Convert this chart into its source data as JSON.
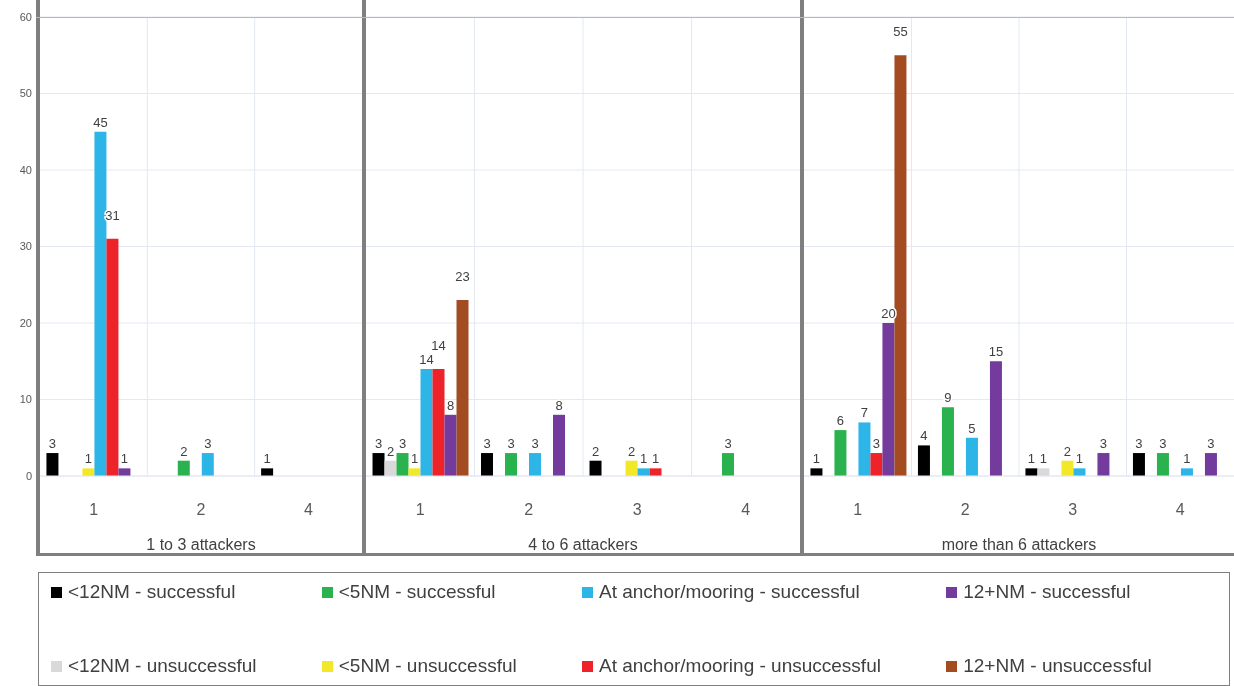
{
  "chart_data": [
    {
      "type": "bar",
      "xlabel": "1 to 3 attackers",
      "categories": [
        "1",
        "2",
        "4"
      ],
      "ylim": [
        0,
        60
      ],
      "yticks": [
        0,
        10,
        20,
        30,
        40,
        50,
        60
      ],
      "grid": true,
      "data_labels": true,
      "legend": "bottom",
      "series": [
        {
          "name": "<12NM - successful",
          "color": "#000000",
          "values": [
            3,
            null,
            1
          ]
        },
        {
          "name": "<12NM - unsuccessful",
          "color": "#d9d9d9",
          "values": [
            null,
            null,
            null
          ]
        },
        {
          "name": "<5NM - successful",
          "color": "#2ab24f",
          "values": [
            null,
            2,
            null
          ]
        },
        {
          "name": "<5NM - unsuccessful",
          "color": "#f2e827",
          "values": [
            1,
            null,
            null
          ]
        },
        {
          "name": "At anchor/mooring - successful",
          "color": "#2db5e8",
          "values": [
            45,
            3,
            null
          ]
        },
        {
          "name": "At anchor/mooring - unsuccessful",
          "color": "#ee2229",
          "values": [
            31,
            null,
            null
          ]
        },
        {
          "name": "12+NM - successful",
          "color": "#723b9c",
          "values": [
            1,
            null,
            null
          ]
        },
        {
          "name": "12+NM - unsuccessful",
          "color": "#a34b21",
          "values": [
            null,
            null,
            null
          ]
        }
      ]
    },
    {
      "type": "bar",
      "xlabel": "4 to 6 attackers",
      "categories": [
        "1",
        "2",
        "3",
        "4"
      ],
      "ylim": [
        0,
        60
      ],
      "yticks": [
        0,
        10,
        20,
        30,
        40,
        50,
        60
      ],
      "tick_labels": "x",
      "grid": true,
      "data_labels": true,
      "series": [
        {
          "color": "#000000",
          "values": [
            3,
            3,
            2,
            null
          ]
        },
        {
          "color": "#d9d9d9",
          "values": [
            2,
            null,
            null,
            null
          ]
        },
        {
          "color": "#2ab24f",
          "values": [
            3,
            3,
            null,
            3
          ]
        },
        {
          "color": "#f2e827",
          "values": [
            1,
            null,
            2,
            null
          ]
        },
        {
          "color": "#2db5e8",
          "values": [
            14,
            3,
            1,
            null
          ]
        },
        {
          "color": "#ee2229",
          "values": [
            14,
            null,
            1,
            null
          ]
        },
        {
          "color": "#723b9c",
          "values": [
            8,
            8,
            null,
            null
          ]
        },
        {
          "color": "#a34b21",
          "values": [
            23,
            null,
            null,
            null
          ]
        }
      ]
    },
    {
      "type": "bar",
      "xlabel": "more than 6 attackers",
      "categories": [
        "1",
        "2",
        "3",
        "4"
      ],
      "ylim": [
        0,
        60
      ],
      "yticks": [
        0,
        10,
        20,
        30,
        40,
        50,
        60
      ],
      "tick_labels": "x",
      "grid": true,
      "data_labels": true,
      "series": [
        {
          "color": "#000000",
          "values": [
            1,
            4,
            1,
            3
          ]
        },
        {
          "color": "#d9d9d9",
          "values": [
            null,
            null,
            1,
            null
          ]
        },
        {
          "color": "#2ab24f",
          "values": [
            6,
            9,
            null,
            3
          ]
        },
        {
          "color": "#f2e827",
          "values": [
            null,
            null,
            2,
            null
          ]
        },
        {
          "color": "#2db5e8",
          "values": [
            7,
            5,
            1,
            1
          ]
        },
        {
          "color": "#ee2229",
          "values": [
            3,
            null,
            null,
            null
          ]
        },
        {
          "color": "#723b9c",
          "values": [
            20,
            15,
            3,
            3
          ]
        },
        {
          "color": "#a34b21",
          "values": [
            55,
            null,
            null,
            null
          ]
        }
      ]
    }
  ]
}
